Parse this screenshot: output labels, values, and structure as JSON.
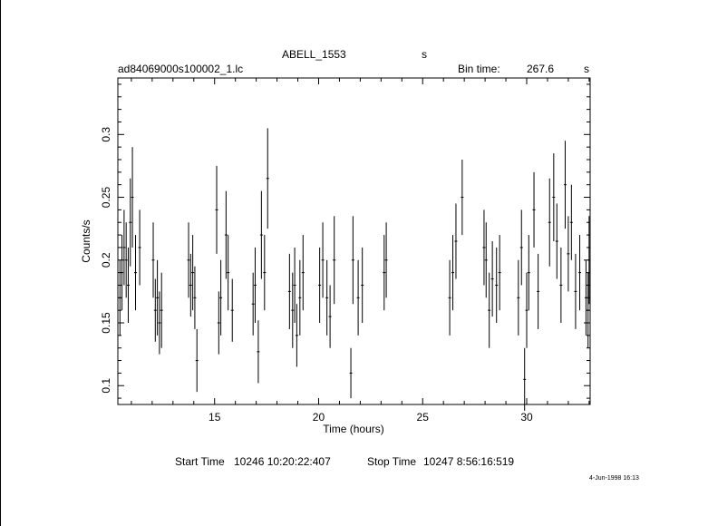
{
  "header": {
    "object": "ABELL_1553",
    "object_unit": "s",
    "filename": "ad84069000s100002_1.lc",
    "bin_label": "Bin time:",
    "bin_value": "267.6",
    "bin_unit": "s"
  },
  "footer": {
    "start_label": "Start Time",
    "start_value": "10246  10:20:22:407",
    "stop_label": "Stop Time",
    "stop_value": "10247   8:56:16:519",
    "date_stamp": "4-Jun-1998 16:13"
  },
  "chart_data": {
    "type": "scatter",
    "xlabel": "Time (hours)",
    "ylabel": "Counts/s",
    "xlim": [
      10.35,
      33.05
    ],
    "ylim": [
      0.085,
      0.345
    ],
    "x_ticks": [
      "15",
      "20",
      "25",
      "30"
    ],
    "y_ticks": [
      "0.1",
      "0.15",
      "0.2",
      "0.25",
      "0.3"
    ],
    "grid": false,
    "series": [
      {
        "x": [
          10.45,
          10.55,
          10.65,
          10.75,
          10.85,
          10.95,
          11.05,
          11.2,
          11.4,
          12.05,
          12.15,
          12.25,
          12.35,
          12.45,
          13.75,
          13.85,
          13.95,
          14.05,
          14.15,
          15.1,
          15.2,
          15.3,
          15.55,
          15.65,
          15.85,
          16.85,
          16.95,
          17.1,
          17.25,
          17.4,
          17.55,
          18.6,
          18.75,
          18.85,
          18.95,
          19.1,
          19.25,
          20.05,
          20.2,
          20.4,
          20.55,
          20.75,
          21.55,
          21.65,
          21.9,
          22.1,
          23.15,
          23.25,
          26.3,
          26.45,
          26.6,
          26.9,
          27.95,
          28.05,
          28.2,
          28.35,
          28.55,
          28.7,
          29.6,
          29.75,
          29.9,
          30.0,
          30.1,
          30.35,
          30.55,
          31.1,
          31.3,
          31.45,
          31.65,
          31.85,
          32.0,
          32.15,
          32.35,
          32.55,
          32.85,
          32.95,
          33.0
        ],
        "y": [
          0.17,
          0.19,
          0.21,
          0.2,
          0.18,
          0.23,
          0.25,
          0.19,
          0.21,
          0.2,
          0.16,
          0.17,
          0.15,
          0.16,
          0.2,
          0.18,
          0.19,
          0.17,
          0.12,
          0.24,
          0.15,
          0.17,
          0.22,
          0.19,
          0.16,
          0.165,
          0.18,
          0.127,
          0.22,
          0.19,
          0.265,
          0.175,
          0.16,
          0.18,
          0.14,
          0.17,
          0.19,
          0.18,
          0.2,
          0.17,
          0.155,
          0.2,
          0.11,
          0.2,
          0.17,
          0.18,
          0.19,
          0.2,
          0.17,
          0.19,
          0.215,
          0.25,
          0.21,
          0.2,
          0.16,
          0.185,
          0.18,
          0.19,
          0.17,
          0.21,
          0.105,
          0.16,
          0.19,
          0.24,
          0.175,
          0.23,
          0.25,
          0.215,
          0.18,
          0.26,
          0.205,
          0.23,
          0.175,
          0.19,
          0.17,
          0.16,
          0.2
        ],
        "err": [
          0.03,
          0.03,
          0.03,
          0.03,
          0.03,
          0.035,
          0.04,
          0.03,
          0.03,
          0.03,
          0.025,
          0.03,
          0.025,
          0.03,
          0.03,
          0.025,
          0.03,
          0.025,
          0.025,
          0.035,
          0.025,
          0.03,
          0.035,
          0.03,
          0.025,
          0.025,
          0.03,
          0.025,
          0.035,
          0.03,
          0.04,
          0.03,
          0.03,
          0.03,
          0.025,
          0.03,
          0.03,
          0.03,
          0.03,
          0.03,
          0.025,
          0.035,
          0.02,
          0.035,
          0.03,
          0.03,
          0.03,
          0.03,
          0.03,
          0.03,
          0.03,
          0.03,
          0.03,
          0.03,
          0.03,
          0.03,
          0.03,
          0.03,
          0.03,
          0.03,
          0.025,
          0.03,
          0.03,
          0.03,
          0.03,
          0.035,
          0.035,
          0.03,
          0.03,
          0.035,
          0.03,
          0.03,
          0.03,
          0.03,
          0.03,
          0.03,
          0.035
        ]
      }
    ]
  }
}
